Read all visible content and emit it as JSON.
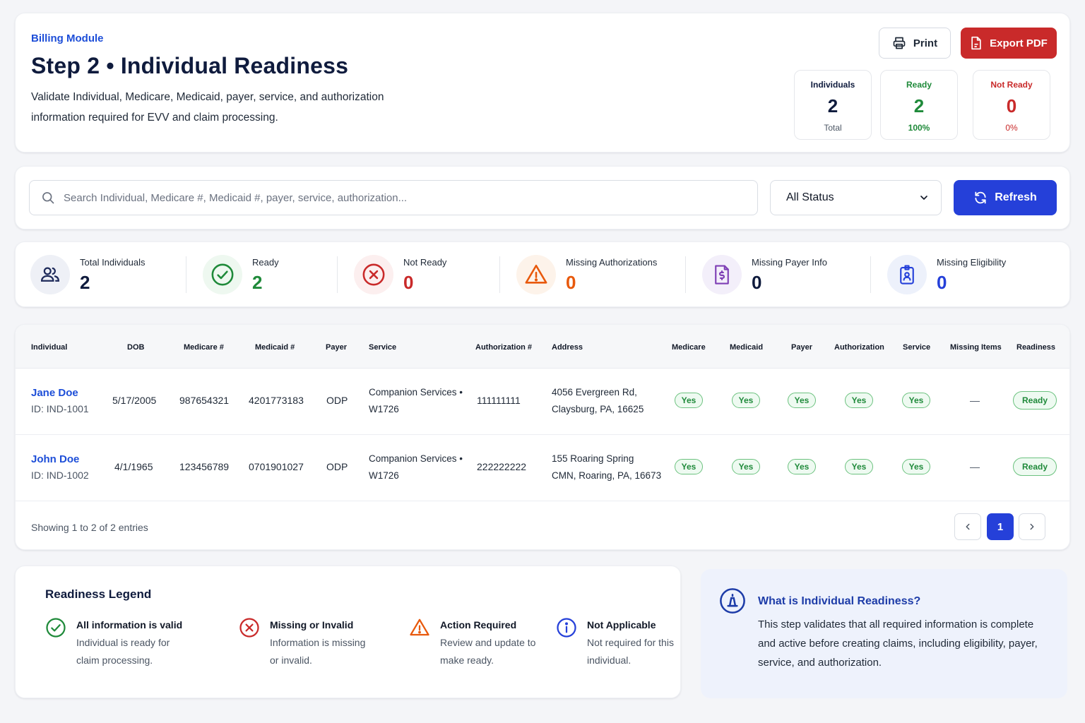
{
  "header": {
    "module_label": "Billing Module",
    "title": "Step 2 • Individual Readiness",
    "description": "Validate Individual, Medicare, Medicaid, payer, service, and authorization information required for EVV and claim processing.",
    "print_label": "Print",
    "export_label": "Export PDF",
    "stats": {
      "individuals": {
        "label": "Individuals",
        "value": "2",
        "sub": "Total"
      },
      "ready": {
        "label": "Ready",
        "value": "2",
        "sub": "100%"
      },
      "not_ready": {
        "label": "Not Ready",
        "value": "0",
        "sub": "0%"
      }
    }
  },
  "search": {
    "placeholder": "Search Individual, Medicare #, Medicaid #, payer, service, authorization...",
    "status_filter": "All Status",
    "refresh_label": "Refresh"
  },
  "summary": {
    "total": {
      "label": "Total Individuals",
      "value": "2"
    },
    "ready": {
      "label": "Ready",
      "value": "2"
    },
    "not_ready": {
      "label": "Not Ready",
      "value": "0"
    },
    "missing_auth": {
      "label": "Missing Authorizations",
      "value": "0"
    },
    "missing_payer": {
      "label": "Missing Payer Info",
      "value": "0"
    },
    "missing_elig": {
      "label": "Missing Eligibility",
      "value": "0"
    }
  },
  "table": {
    "columns": {
      "individual": "Individual",
      "dob": "DOB",
      "medicare_no": "Medicare #",
      "medicaid_no": "Medicaid #",
      "payer": "Payer",
      "service": "Service",
      "auth_no": "Authorization #",
      "address": "Address",
      "medicare": "Medicare",
      "medicaid": "Medicaid",
      "payer_chk": "Payer",
      "authorization": "Authorization",
      "service_chk": "Service",
      "missing": "Missing Items",
      "readiness": "Readiness"
    },
    "rows": [
      {
        "name": "Jane Doe",
        "id": "ID: IND-1001",
        "dob": "5/17/2005",
        "medicare_no": "987654321",
        "medicaid_no": "4201773183",
        "payer": "ODP",
        "service_line1": "Companion Services •",
        "service_line2": "W1726",
        "auth_no": "111111111",
        "address_line1": "4056 Evergreen Rd,",
        "address_line2": "Claysburg, PA, 16625",
        "medicare": "Yes",
        "medicaid": "Yes",
        "payer_chk": "Yes",
        "authorization": "Yes",
        "service_chk": "Yes",
        "missing": "—",
        "readiness": "Ready"
      },
      {
        "name": "John Doe",
        "id": "ID: IND-1002",
        "dob": "4/1/1965",
        "medicare_no": "123456789",
        "medicaid_no": "0701901027",
        "payer": "ODP",
        "service_line1": "Companion Services •",
        "service_line2": "W1726",
        "auth_no": "222222222",
        "address_line1": "155 Roaring Spring",
        "address_line2": "CMN, Roaring, PA, 16673",
        "medicare": "Yes",
        "medicaid": "Yes",
        "payer_chk": "Yes",
        "authorization": "Yes",
        "service_chk": "Yes",
        "missing": "—",
        "readiness": "Ready"
      }
    ],
    "footer": "Showing 1 to 2 of 2 entries",
    "current_page": "1"
  },
  "legend": {
    "title": "Readiness Legend",
    "items": [
      {
        "title": "All information is valid",
        "desc": "Individual is ready for claim processing.",
        "icon": "check-circle-icon"
      },
      {
        "title": "Missing or Invalid",
        "desc": "Information is missing or invalid.",
        "icon": "x-circle-icon"
      },
      {
        "title": "Action Required",
        "desc": "Review and update to make ready.",
        "icon": "warning-triangle-icon"
      },
      {
        "title": "Not Applicable",
        "desc": "Not required for this individual.",
        "icon": "info-circle-icon"
      }
    ]
  },
  "info": {
    "title": "What is Individual Readiness?",
    "text": "This step validates that all required information is complete and active before creating claims, including eligibility, payer, service, and authorization."
  },
  "colors": {
    "primary": "#2540d9",
    "danger": "#c92a2a",
    "success": "#1f8a3a",
    "warning": "#e8590c",
    "purple": "#7e3fb5",
    "navy": "#0f1b3d"
  }
}
